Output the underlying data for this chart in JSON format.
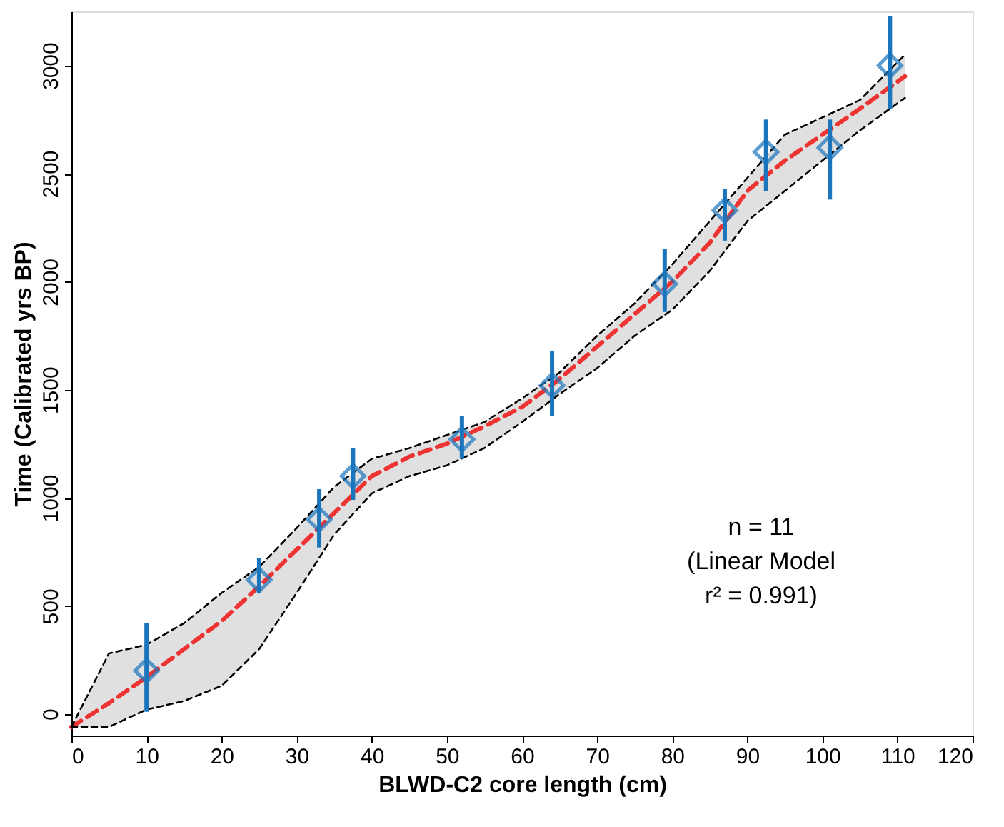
{
  "chart_data": {
    "type": "line",
    "xlabel": "BLWD-C2 core length (cm)",
    "ylabel": "Time (Calibrated yrs BP)",
    "xlim": [
      0,
      120
    ],
    "xticks": [
      0,
      10,
      20,
      30,
      40,
      50,
      60,
      70,
      80,
      90,
      100,
      110,
      120
    ],
    "ylim": [
      -100,
      3250
    ],
    "yticks": [
      0,
      500,
      1000,
      1500,
      2000,
      2500,
      3000
    ],
    "grid": false,
    "legend": false,
    "series": [
      {
        "color": "#ee3333",
        "line_style": "dashed",
        "marker": "none",
        "x": [
          0,
          5,
          10,
          15,
          20,
          25,
          30,
          35,
          40,
          45,
          50,
          55,
          60,
          65,
          70,
          75,
          80,
          85,
          90,
          95,
          100,
          105,
          111
        ],
        "values": [
          -60,
          50,
          170,
          300,
          430,
          590,
          760,
          930,
          1100,
          1190,
          1250,
          1330,
          1420,
          1550,
          1700,
          1850,
          2000,
          2180,
          2420,
          2560,
          2680,
          2800,
          2950
        ],
        "upper": [
          -60,
          280,
          320,
          420,
          560,
          680,
          860,
          1050,
          1180,
          1230,
          1290,
          1350,
          1460,
          1580,
          1750,
          1900,
          2080,
          2280,
          2480,
          2680,
          2760,
          2840,
          3050
        ],
        "lower": [
          -60,
          -60,
          20,
          60,
          130,
          300,
          560,
          830,
          1020,
          1100,
          1150,
          1230,
          1350,
          1480,
          1600,
          1750,
          1870,
          2050,
          2280,
          2420,
          2560,
          2700,
          2850
        ]
      },
      {
        "color": "#000000",
        "line_style": "dashed",
        "marker": "none",
        "x": [
          0,
          5,
          10,
          15,
          20,
          25,
          30,
          35,
          40,
          45,
          50,
          55,
          60,
          65,
          70,
          75,
          80,
          85,
          90,
          95,
          100,
          105,
          111
        ],
        "values": [
          -60,
          280,
          320,
          420,
          560,
          680,
          860,
          1050,
          1180,
          1230,
          1290,
          1350,
          1460,
          1580,
          1750,
          1900,
          2080,
          2280,
          2480,
          2680,
          2760,
          2840,
          3050
        ]
      },
      {
        "color": "#000000",
        "line_style": "dashed",
        "marker": "none",
        "x": [
          0,
          5,
          10,
          15,
          20,
          25,
          30,
          35,
          40,
          45,
          50,
          55,
          60,
          65,
          70,
          75,
          80,
          85,
          90,
          95,
          100,
          105,
          111
        ],
        "values": [
          -60,
          -60,
          20,
          60,
          130,
          300,
          560,
          830,
          1020,
          1100,
          1150,
          1230,
          1350,
          1480,
          1600,
          1750,
          1870,
          2050,
          2280,
          2420,
          2560,
          2700,
          2850
        ]
      },
      {
        "type": "scatter",
        "color": "#1a75bc",
        "marker": "diamond",
        "x": [
          10,
          25,
          33,
          37.5,
          52,
          64,
          79,
          87,
          92.5,
          101,
          109
        ],
        "values": [
          200,
          620,
          900,
          1100,
          1270,
          1520,
          1990,
          2330,
          2600,
          2620,
          3000
        ],
        "errors": [
          [
            10,
            420
          ],
          [
            560,
            720
          ],
          [
            770,
            1040
          ],
          [
            990,
            1230
          ],
          [
            1180,
            1380
          ],
          [
            1380,
            1680
          ],
          [
            1860,
            2150
          ],
          [
            2190,
            2430
          ],
          [
            2420,
            2750
          ],
          [
            2380,
            2750
          ],
          [
            2800,
            3230
          ]
        ]
      }
    ],
    "annotations": [
      "n = 11\n(Linear Model\nr² = 0.991)"
    ]
  }
}
